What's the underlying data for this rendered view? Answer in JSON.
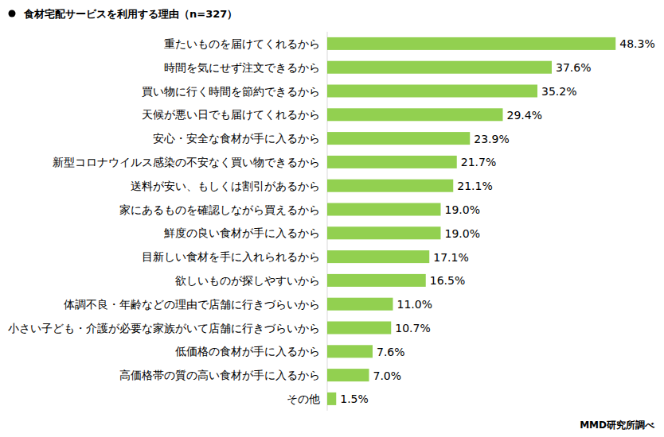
{
  "chart_data": {
    "type": "bar",
    "orientation": "horizontal",
    "title": "食材宅配サービスを利用する理由（n=327）",
    "annotations": [
      "MMD研究所調べ"
    ],
    "categories": [
      "重たいものを届けてくれるから",
      "時間を気にせず注文できるから",
      "買い物に行く時間を節約できるから",
      "天候が悪い日でも届けてくれるから",
      "安心・安全な食材が手に入るから",
      "新型コロナウイルス感染の不安なく買い物できるから",
      "送料が安い、もしくは割引があるから",
      "家にあるものを確認しながら買えるから",
      "鮮度の良い食材が手に入るから",
      "目新しい食材を手に入れられるから",
      "欲しいものが探しやすいから",
      "体調不良・年齢などの理由で店舗に行きづらいから",
      "小さい子ども・介護が必要な家族がいて店舗に行きづらいから",
      "低価格の食材が手に入るから",
      "高価格帯の質の高い食材が手に入るから",
      "その他"
    ],
    "values": [
      48.3,
      37.6,
      35.2,
      29.4,
      23.9,
      21.7,
      21.1,
      19.0,
      19.0,
      17.1,
      16.5,
      11.0,
      10.7,
      7.6,
      7.0,
      1.5
    ],
    "value_labels": [
      "48.3%",
      "37.6%",
      "35.2%",
      "29.4%",
      "23.9%",
      "21.7%",
      "21.1%",
      "19.0%",
      "19.0%",
      "17.1%",
      "16.5%",
      "11.0%",
      "10.7%",
      "7.6%",
      "7.0%",
      "1.5%"
    ],
    "color": "#92d050",
    "xlim": [
      0,
      50
    ],
    "data_labels": true,
    "tick_labels": "y",
    "grid": false
  }
}
